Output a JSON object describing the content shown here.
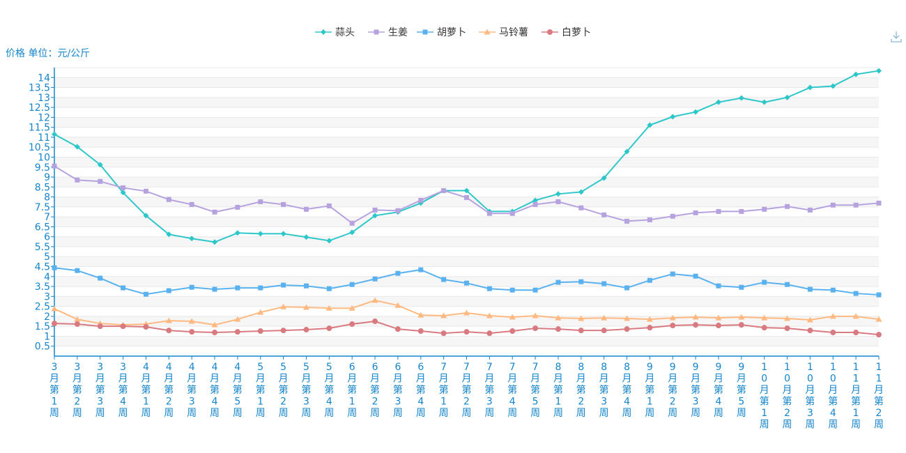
{
  "chart_data": {
    "type": "line",
    "ylabel": "价格 单位：元/公斤",
    "ylim": [
      0,
      14.5
    ],
    "yticks": [
      0.5,
      1,
      1.5,
      2,
      2.5,
      3,
      3.5,
      4,
      4.5,
      5,
      5.5,
      6,
      6.5,
      7,
      7.5,
      8,
      8.5,
      9,
      9.5,
      10,
      10.5,
      11,
      11.5,
      12,
      12.5,
      13,
      13.5,
      14
    ],
    "grid": true,
    "legend_position": "top",
    "categories": [
      "3月第1周",
      "3月第2周",
      "3月第3周",
      "3月第4周",
      "4月第1周",
      "4月第2周",
      "4月第3周",
      "4月第4周",
      "4月第5周",
      "5月第1周",
      "5月第2周",
      "5月第3周",
      "5月第4周",
      "6月第1周",
      "6月第2周",
      "6月第3周",
      "6月第4周",
      "7月第1周",
      "7月第2周",
      "7月第3周",
      "7月第4周",
      "7月第5周",
      "8月第1周",
      "8月第2周",
      "8月第3周",
      "8月第4周",
      "9月第1周",
      "9月第2周",
      "9月第3周",
      "9月第4周",
      "9月第5周",
      "10月第1周",
      "10月第2周",
      "10月第3周",
      "10月第4周",
      "11月第1周",
      "11月第2周"
    ],
    "series": [
      {
        "name": "蒜头",
        "color": "#2ec7c9",
        "marker": "diamond",
        "values": [
          11.15,
          10.52,
          9.62,
          8.22,
          7.06,
          6.12,
          5.91,
          5.73,
          6.19,
          6.15,
          6.15,
          5.98,
          5.8,
          6.22,
          7.06,
          7.24,
          7.69,
          8.32,
          8.32,
          7.27,
          7.27,
          7.83,
          8.15,
          8.25,
          8.95,
          10.28,
          11.61,
          12.03,
          12.27,
          12.76,
          12.97,
          12.76,
          13.0,
          13.5,
          13.57,
          14.16,
          14.34
        ]
      },
      {
        "name": "生姜",
        "color": "#b6a2de",
        "marker": "square",
        "values": [
          9.55,
          8.85,
          8.78,
          8.46,
          8.29,
          7.87,
          7.62,
          7.24,
          7.48,
          7.76,
          7.62,
          7.38,
          7.55,
          6.68,
          7.34,
          7.31,
          7.83,
          8.32,
          7.97,
          7.17,
          7.17,
          7.62,
          7.76,
          7.45,
          7.1,
          6.78,
          6.85,
          7.03,
          7.2,
          7.27,
          7.27,
          7.38,
          7.52,
          7.34,
          7.59,
          7.59,
          7.69
        ]
      },
      {
        "name": "胡萝卜",
        "color": "#5ab1ef",
        "marker": "square",
        "values": [
          4.44,
          4.3,
          3.92,
          3.43,
          3.11,
          3.29,
          3.46,
          3.36,
          3.43,
          3.43,
          3.57,
          3.53,
          3.39,
          3.6,
          3.88,
          4.16,
          4.34,
          3.85,
          3.67,
          3.39,
          3.32,
          3.32,
          3.71,
          3.74,
          3.64,
          3.43,
          3.81,
          4.13,
          4.02,
          3.53,
          3.46,
          3.71,
          3.6,
          3.36,
          3.32,
          3.15,
          3.08
        ]
      },
      {
        "name": "马铃薯",
        "color": "#ffb980",
        "marker": "triangle",
        "values": [
          2.38,
          1.85,
          1.64,
          1.57,
          1.61,
          1.78,
          1.75,
          1.57,
          1.85,
          2.2,
          2.48,
          2.45,
          2.41,
          2.41,
          2.8,
          2.55,
          2.06,
          2.03,
          2.17,
          2.03,
          1.96,
          2.03,
          1.92,
          1.89,
          1.92,
          1.89,
          1.85,
          1.92,
          1.96,
          1.92,
          1.96,
          1.92,
          1.89,
          1.82,
          2.0,
          2.0,
          1.85
        ]
      },
      {
        "name": "白萝卜",
        "color": "#d87a80",
        "marker": "circle",
        "values": [
          1.64,
          1.61,
          1.5,
          1.5,
          1.47,
          1.29,
          1.22,
          1.19,
          1.22,
          1.26,
          1.29,
          1.33,
          1.4,
          1.61,
          1.75,
          1.36,
          1.26,
          1.15,
          1.22,
          1.15,
          1.26,
          1.4,
          1.36,
          1.29,
          1.29,
          1.36,
          1.43,
          1.54,
          1.57,
          1.54,
          1.57,
          1.43,
          1.4,
          1.29,
          1.19,
          1.19,
          1.08
        ]
      }
    ],
    "axis_color": "#1485cc"
  },
  "toolbar": {
    "download_icon": "download-icon"
  }
}
